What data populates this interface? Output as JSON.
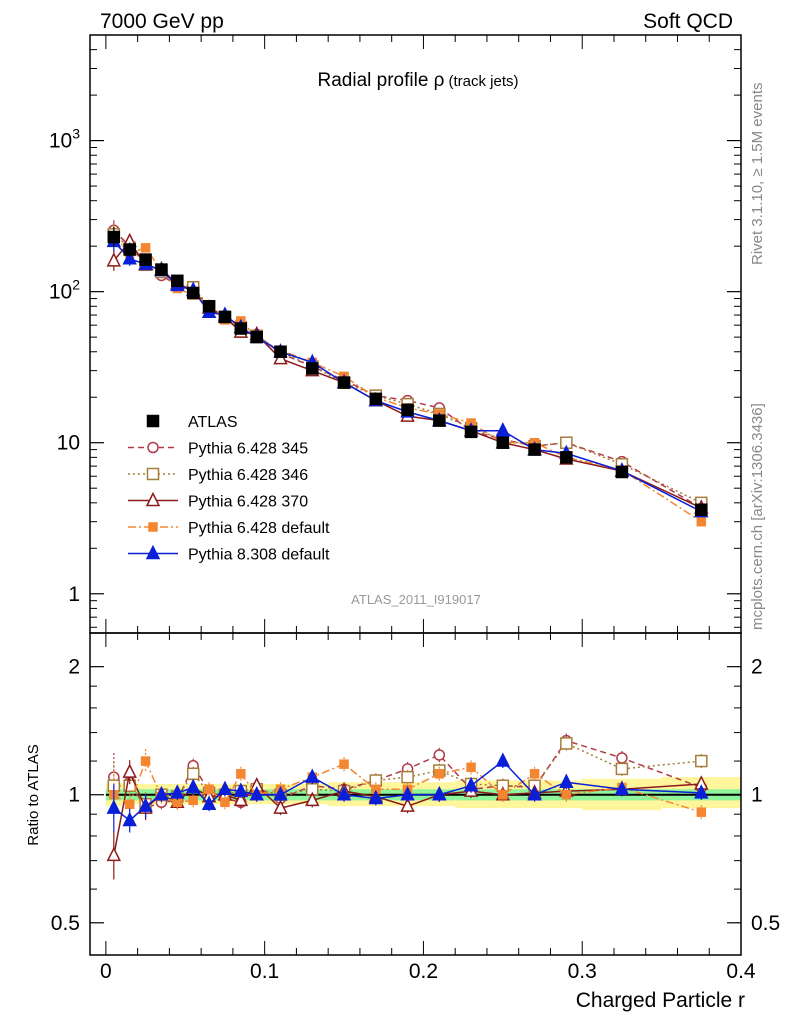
{
  "header": {
    "left": "7000 GeV pp",
    "right": "Soft QCD"
  },
  "side_labels": {
    "top": "Rivet 3.1.10, ≥ 1.5M events",
    "bottom": "mcplots.cern.ch [arXiv:1306.3436]"
  },
  "analysis_id": "ATLAS_2011_I919017",
  "colors": {
    "ATLAS": "#000000",
    "p345": "#b03a48",
    "p346": "#a67c3a",
    "p370": "#8b1a1a",
    "p6def": "#f58631",
    "p8def": "#0a1fd8",
    "band_yellow": "#fff59a",
    "band_green": "#8ef59a"
  },
  "chart_data": [
    {
      "type": "line",
      "scale": "log",
      "title": "Radial profile ρ",
      "title_sub": "(track jets)",
      "ylim": [
        0.55,
        5000
      ],
      "xlim": [
        -0.01,
        0.4
      ],
      "y_ticks": [
        {
          "v": 1,
          "label": "1"
        },
        {
          "v": 10,
          "label": "10"
        },
        {
          "v": 100,
          "label": "10",
          "sup": "2"
        },
        {
          "v": 1000,
          "label": "10",
          "sup": "3"
        }
      ],
      "x": [
        0.005,
        0.015,
        0.025,
        0.035,
        0.045,
        0.055,
        0.065,
        0.075,
        0.085,
        0.095,
        0.11,
        0.13,
        0.15,
        0.17,
        0.19,
        0.21,
        0.23,
        0.25,
        0.27,
        0.29,
        0.325,
        0.375
      ],
      "series": [
        {
          "key": "ATLAS",
          "name": "ATLAS",
          "values": [
            230,
            190,
            163,
            140,
            118,
            98,
            80,
            68,
            57,
            50,
            40,
            31,
            25,
            19.5,
            16.5,
            14,
            11.8,
            10,
            9,
            8,
            6.4,
            3.6
          ]
        },
        {
          "key": "p345",
          "name": "Pythia 6.428 345",
          "values": [
            255,
            200,
            152,
            128,
            110,
            102,
            78,
            67,
            55,
            52,
            39,
            32,
            26,
            20.5,
            19,
            17,
            12,
            10.5,
            9.5,
            10,
            7.5,
            3.7
          ]
        },
        {
          "key": "p346",
          "name": "Pythia 6.428 346",
          "values": [
            240,
            195,
            155,
            135,
            113,
            107,
            80,
            68,
            58,
            51,
            40,
            32,
            25,
            20.5,
            18,
            15.5,
            12.5,
            10.5,
            9.5,
            10,
            7.2,
            4.0
          ]
        },
        {
          "key": "p370",
          "name": "Pythia 6.428 370",
          "values": [
            160,
            215,
            150,
            140,
            113,
            102,
            78,
            68,
            54,
            52,
            36,
            30,
            25,
            19,
            15,
            14,
            12,
            10,
            9,
            7.8,
            6.5,
            3.7
          ]
        },
        {
          "key": "p6def",
          "name": "Pythia 6.428 default",
          "values": [
            235,
            180,
            195,
            138,
            105,
            95,
            82,
            65,
            64,
            50,
            41,
            34,
            27.5,
            20,
            17,
            15.5,
            13.5,
            10,
            10,
            8,
            6.6,
            3.0
          ]
        },
        {
          "key": "p8def",
          "name": "Pythia 8.308 default",
          "values": [
            215,
            165,
            152,
            138,
            110,
            102,
            73,
            70,
            58,
            50,
            40,
            34,
            25,
            19,
            16,
            14,
            12,
            12,
            9,
            8.5,
            6.5,
            3.5
          ]
        }
      ]
    },
    {
      "type": "line",
      "scale": "log",
      "ylabel": "Ratio to ATLAS",
      "xlabel": "Charged Particle r",
      "ylim": [
        0.42,
        2.4
      ],
      "xlim": [
        -0.01,
        0.4
      ],
      "y_ticks": [
        {
          "v": 0.5,
          "label": "0.5"
        },
        {
          "v": 1,
          "label": "1"
        },
        {
          "v": 2,
          "label": "2"
        }
      ],
      "x_ticks": [
        {
          "v": 0,
          "label": "0"
        },
        {
          "v": 0.1,
          "label": "0.1"
        },
        {
          "v": 0.2,
          "label": "0.2"
        },
        {
          "v": 0.3,
          "label": "0.3"
        },
        {
          "v": 0.4,
          "label": "0.4"
        }
      ],
      "x": [
        0.005,
        0.015,
        0.025,
        0.035,
        0.045,
        0.055,
        0.065,
        0.075,
        0.085,
        0.095,
        0.11,
        0.13,
        0.15,
        0.17,
        0.19,
        0.21,
        0.23,
        0.25,
        0.27,
        0.29,
        0.325,
        0.375
      ],
      "band_edges": [
        0,
        0.01,
        0.02,
        0.03,
        0.04,
        0.05,
        0.06,
        0.07,
        0.08,
        0.09,
        0.1,
        0.12,
        0.14,
        0.16,
        0.18,
        0.2,
        0.22,
        0.24,
        0.26,
        0.28,
        0.3,
        0.35,
        0.4
      ],
      "band_yellow": [
        [
          0.94,
          1.07
        ],
        [
          0.95,
          1.06
        ],
        [
          0.95,
          1.06
        ],
        [
          0.95,
          1.06
        ],
        [
          0.95,
          1.06
        ],
        [
          0.95,
          1.06
        ],
        [
          0.95,
          1.06
        ],
        [
          0.95,
          1.06
        ],
        [
          0.95,
          1.06
        ],
        [
          0.95,
          1.06
        ],
        [
          0.95,
          1.06
        ],
        [
          0.95,
          1.06
        ],
        [
          0.94,
          1.07
        ],
        [
          0.94,
          1.07
        ],
        [
          0.94,
          1.07
        ],
        [
          0.94,
          1.07
        ],
        [
          0.93,
          1.08
        ],
        [
          0.93,
          1.08
        ],
        [
          0.93,
          1.08
        ],
        [
          0.93,
          1.08
        ],
        [
          0.92,
          1.09
        ],
        [
          0.93,
          1.1
        ]
      ],
      "band_green": [
        [
          0.97,
          1.03
        ],
        [
          0.97,
          1.03
        ],
        [
          0.97,
          1.03
        ],
        [
          0.97,
          1.03
        ],
        [
          0.97,
          1.03
        ],
        [
          0.97,
          1.03
        ],
        [
          0.97,
          1.03
        ],
        [
          0.97,
          1.03
        ],
        [
          0.97,
          1.03
        ],
        [
          0.97,
          1.03
        ],
        [
          0.97,
          1.03
        ],
        [
          0.97,
          1.03
        ],
        [
          0.97,
          1.03
        ],
        [
          0.97,
          1.03
        ],
        [
          0.97,
          1.03
        ],
        [
          0.97,
          1.03
        ],
        [
          0.97,
          1.03
        ],
        [
          0.97,
          1.03
        ],
        [
          0.97,
          1.03
        ],
        [
          0.97,
          1.03
        ],
        [
          0.97,
          1.03
        ],
        [
          0.97,
          1.03
        ]
      ],
      "series": [
        {
          "key": "p345",
          "name": "Pythia 6.428 345",
          "values": [
            1.1,
            1.07,
            0.93,
            0.96,
            0.97,
            1.17,
            1.02,
            0.98,
            0.96,
            1.04,
            0.98,
            1.05,
            1.03,
            1.08,
            1.15,
            1.24,
            1.03,
            1.05,
            1.04,
            1.34,
            1.22,
            1.04
          ]
        },
        {
          "key": "p346",
          "name": "Pythia 6.428 346",
          "values": [
            1.05,
            1.05,
            0.95,
            1.0,
            0.99,
            1.12,
            1.01,
            1.0,
            1.02,
            1.03,
            1.0,
            1.03,
            1.02,
            1.08,
            1.1,
            1.14,
            1.06,
            1.05,
            1.05,
            1.32,
            1.15,
            1.2
          ]
        },
        {
          "key": "p370",
          "name": "Pythia 6.428 370",
          "values": [
            0.72,
            1.13,
            0.93,
            1.0,
            0.96,
            1.04,
            0.99,
            1.0,
            0.97,
            1.05,
            0.93,
            0.97,
            1.02,
            0.99,
            0.94,
            1.0,
            1.02,
            1.0,
            1.01,
            1.02,
            1.03,
            1.06
          ]
        },
        {
          "key": "p6def",
          "name": "Pythia 6.428 default",
          "values": [
            1.0,
            0.95,
            1.2,
            0.99,
            0.96,
            0.97,
            1.03,
            0.96,
            1.12,
            1.0,
            1.03,
            1.1,
            1.18,
            1.03,
            1.03,
            1.12,
            1.16,
            1.0,
            1.12,
            1.0,
            1.04,
            0.91
          ]
        },
        {
          "key": "p8def",
          "name": "Pythia 8.308 default",
          "values": [
            0.93,
            0.87,
            0.94,
            1.0,
            1.01,
            1.04,
            0.95,
            1.03,
            1.02,
            1.0,
            1.0,
            1.1,
            1.0,
            0.98,
            1.0,
            1.0,
            1.05,
            1.2,
            1.0,
            1.07,
            1.03,
            1.01
          ]
        }
      ]
    }
  ]
}
